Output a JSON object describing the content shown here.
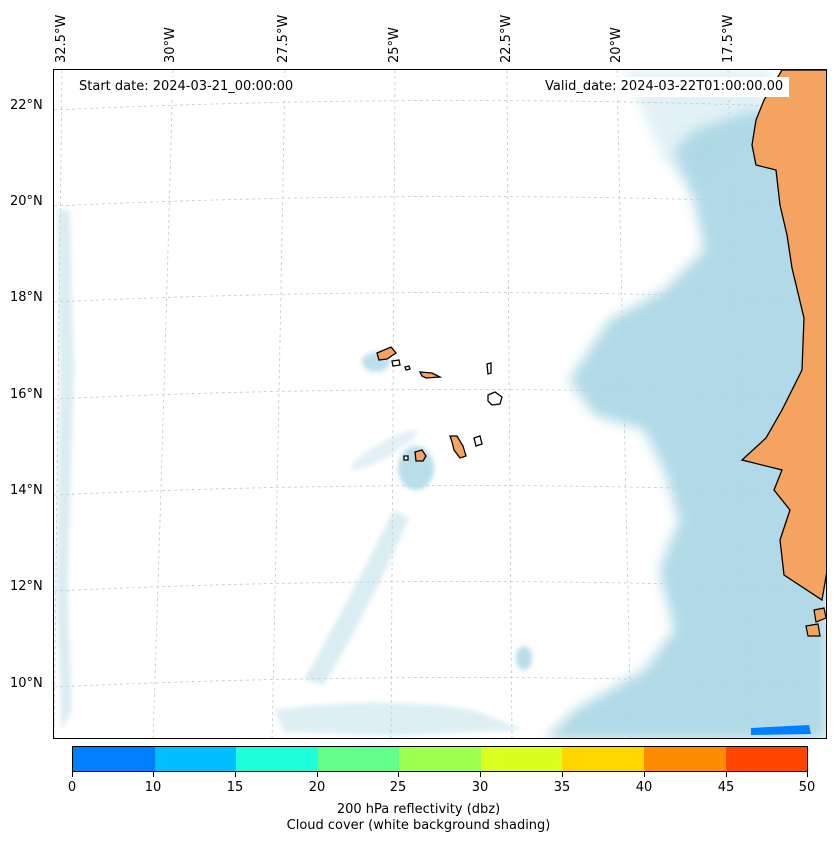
{
  "map": {
    "start_date": "Start date: 2024-03-21_00:00:00",
    "valid_date": "Valid_date: 2024-03-22T01:00:00.00",
    "lon_labels": [
      "32.5°W",
      "30°W",
      "27.5°W",
      "25°W",
      "22.5°W",
      "20°W",
      "17.5°W"
    ],
    "lat_labels": [
      "22°N",
      "20°N",
      "18°N",
      "16°N",
      "14°N",
      "12°N",
      "10°N"
    ],
    "colors": {
      "land": "#f4a460",
      "cloud": "#add8e6",
      "coast": "#000000",
      "grid": "#c8c8c8"
    }
  },
  "colorbar": {
    "ticks": [
      "0",
      "10",
      "15",
      "20",
      "25",
      "30",
      "35",
      "40",
      "45",
      "50"
    ],
    "colors": [
      "#007fff",
      "#00bfff",
      "#1effdb",
      "#61ff8a",
      "#9dff50",
      "#dbff1e",
      "#ffd700",
      "#ff8c00",
      "#ff4500"
    ],
    "label_line1": "200 hPa reflectivity (dbz)",
    "label_line2": "Cloud cover (white background shading)"
  }
}
